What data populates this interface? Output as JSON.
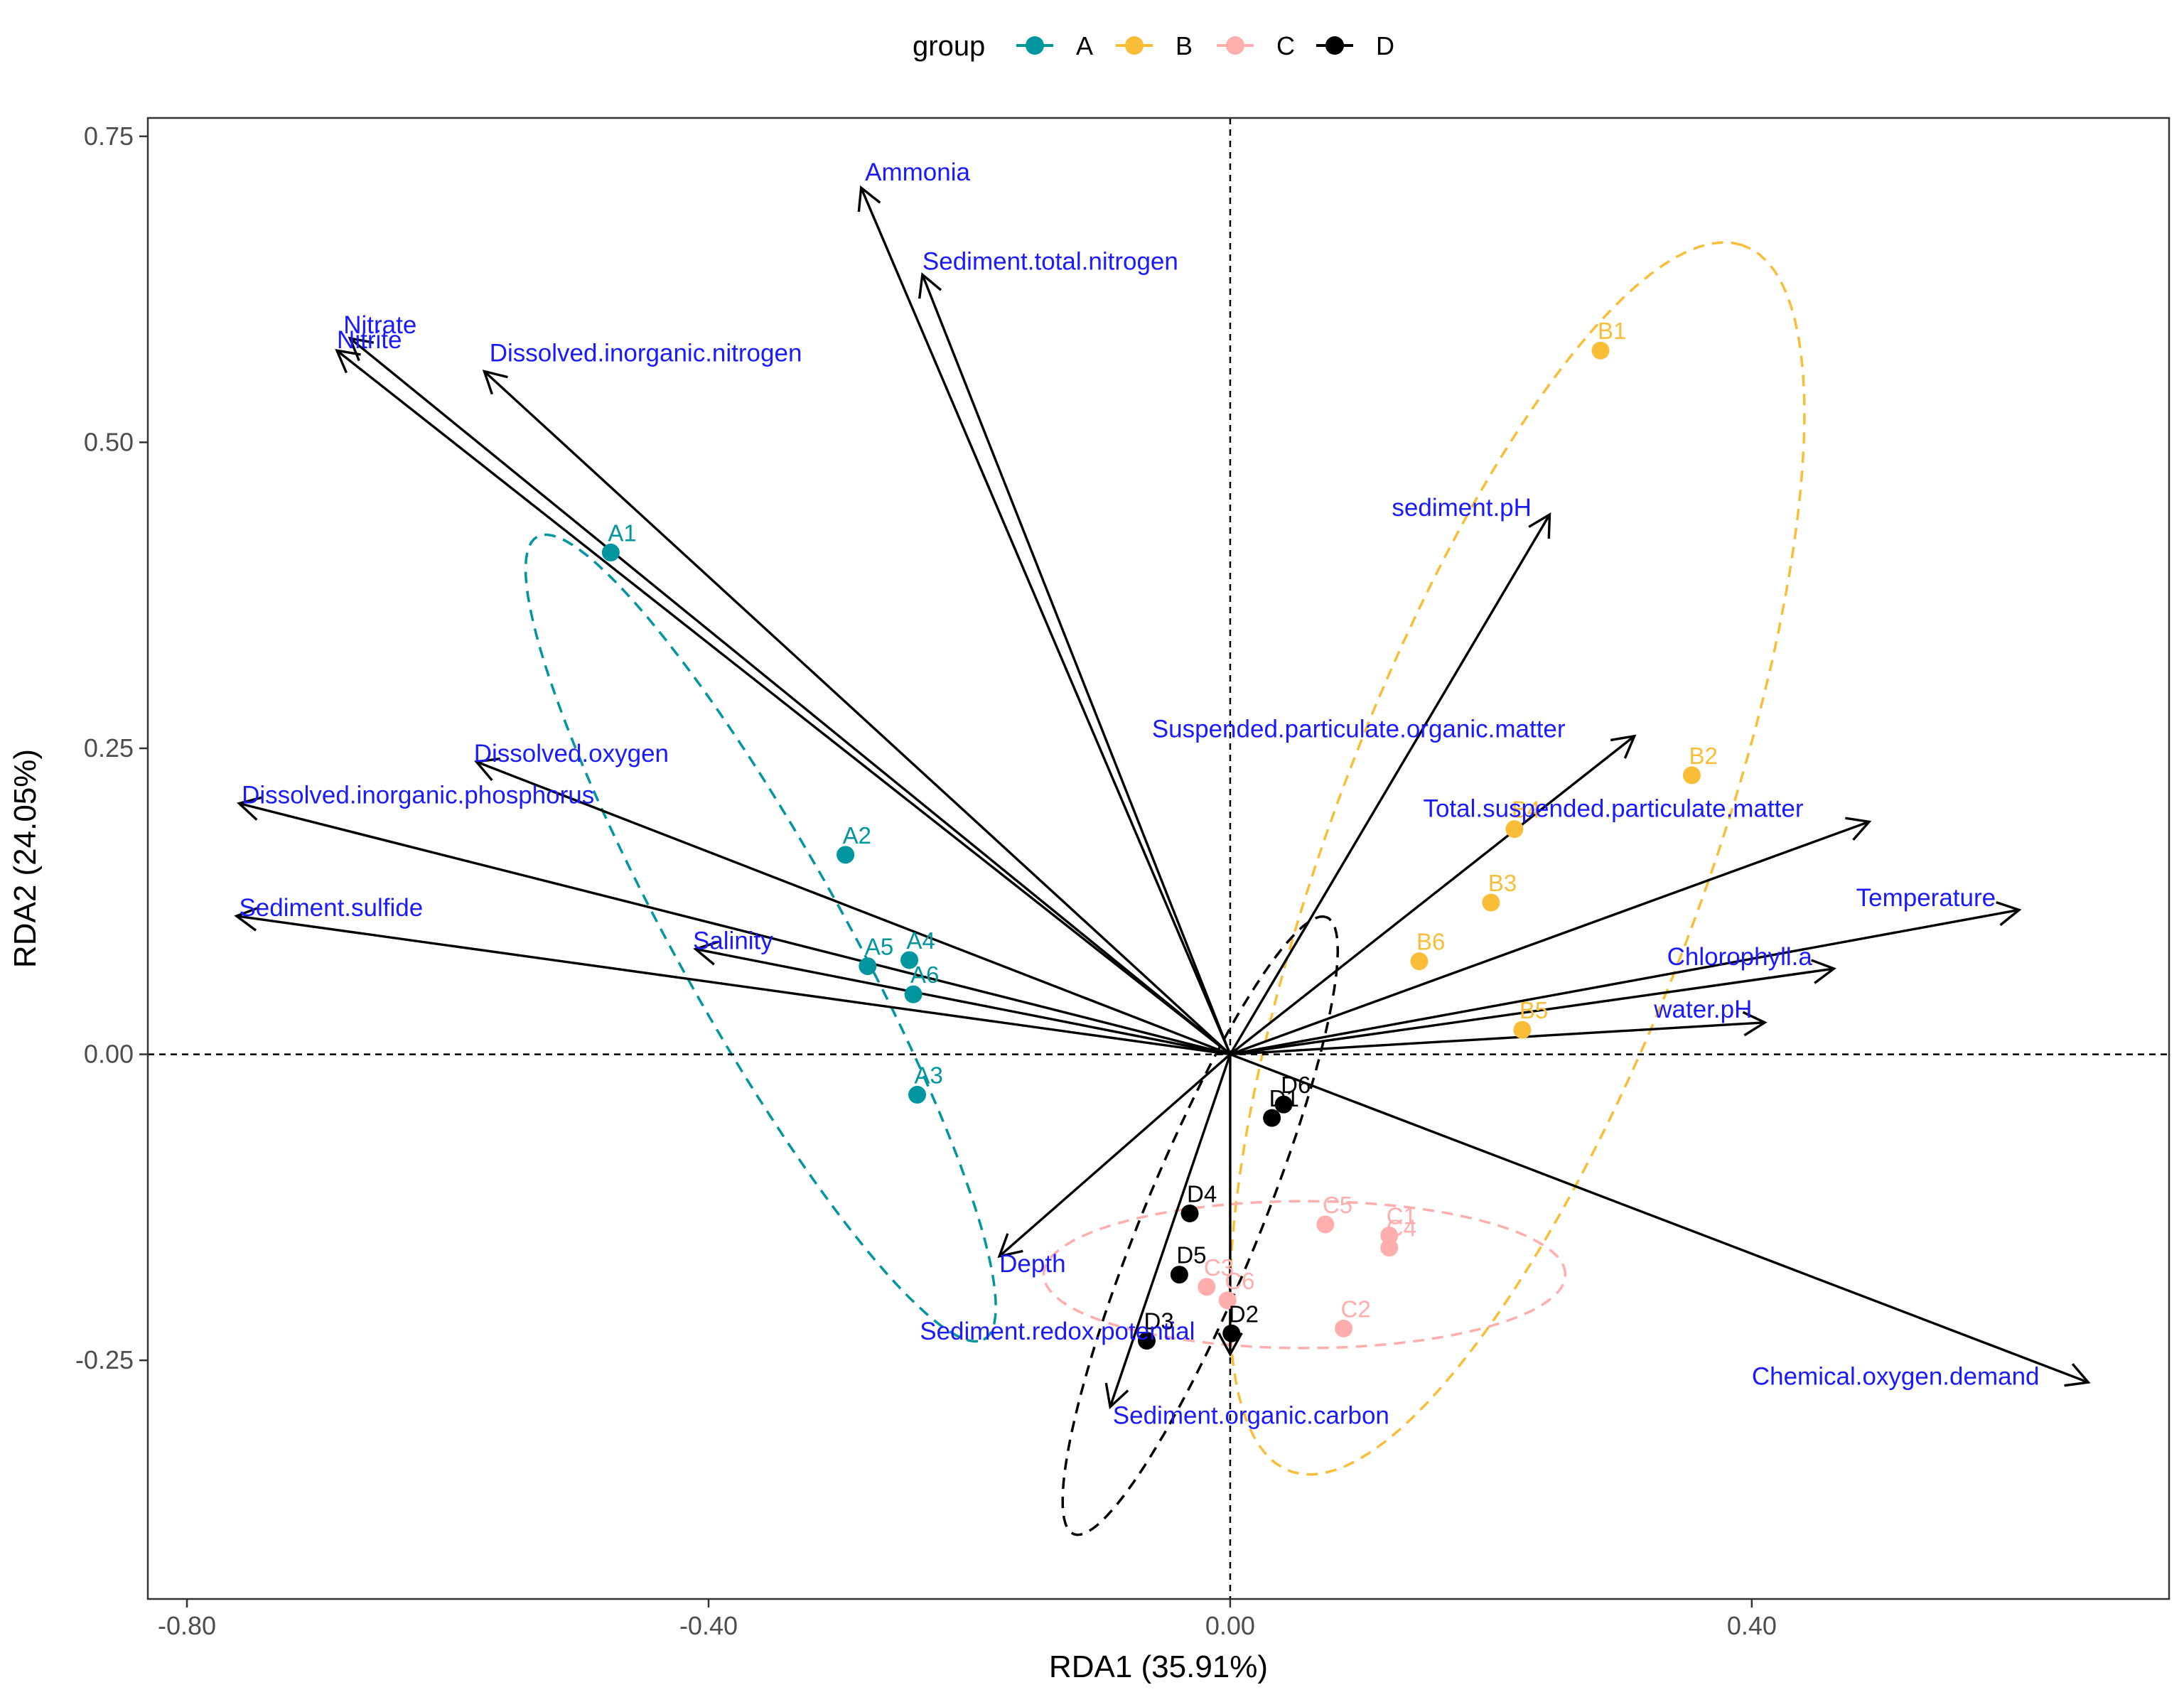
{
  "chart_data": {
    "type": "scatter",
    "subtype": "rda-biplot",
    "xlabel": "RDA1 (35.91%)",
    "ylabel": "RDA2 (24.05%)",
    "xlim": [
      -0.83,
      0.72
    ],
    "ylim": [
      -0.445,
      0.765
    ],
    "x_ticks": [
      -0.8,
      -0.4,
      0.0,
      0.4
    ],
    "x_tick_labels": [
      "-0.80",
      "-0.40",
      "0.00",
      "0.40"
    ],
    "y_ticks": [
      -0.25,
      0.0,
      0.25,
      0.5,
      0.75
    ],
    "y_tick_labels": [
      "-0.25",
      "0.00",
      "0.25",
      "0.50",
      "0.75"
    ],
    "grid": false,
    "reference_lines": {
      "x": 0,
      "y": 0,
      "style": "dashed"
    },
    "legend": {
      "title": "group",
      "position": "top",
      "entries": [
        {
          "name": "A",
          "color": "#00959f"
        },
        {
          "name": "B",
          "color": "#f9bd38"
        },
        {
          "name": "C",
          "color": "#ffadad"
        },
        {
          "name": "D",
          "color": "#000000"
        }
      ]
    },
    "points": [
      {
        "label": "A1",
        "group": "A",
        "x": -0.475,
        "y": 0.41
      },
      {
        "label": "A2",
        "group": "A",
        "x": -0.295,
        "y": 0.163
      },
      {
        "label": "A3",
        "group": "A",
        "x": -0.24,
        "y": -0.033
      },
      {
        "label": "A4",
        "group": "A",
        "x": -0.246,
        "y": 0.077
      },
      {
        "label": "A5",
        "group": "A",
        "x": -0.278,
        "y": 0.072
      },
      {
        "label": "A6",
        "group": "A",
        "x": -0.243,
        "y": 0.049
      },
      {
        "label": "B1",
        "group": "B",
        "x": 0.284,
        "y": 0.575
      },
      {
        "label": "B2",
        "group": "B",
        "x": 0.354,
        "y": 0.228
      },
      {
        "label": "B3",
        "group": "B",
        "x": 0.2,
        "y": 0.124
      },
      {
        "label": "B4",
        "group": "B",
        "x": 0.218,
        "y": 0.184
      },
      {
        "label": "B5",
        "group": "B",
        "x": 0.224,
        "y": 0.02
      },
      {
        "label": "B6",
        "group": "B",
        "x": 0.145,
        "y": 0.076
      },
      {
        "label": "C1",
        "group": "C",
        "x": 0.122,
        "y": -0.148
      },
      {
        "label": "C2",
        "group": "C",
        "x": 0.087,
        "y": -0.224
      },
      {
        "label": "C3",
        "group": "C",
        "x": -0.018,
        "y": -0.19
      },
      {
        "label": "C4",
        "group": "C",
        "x": 0.122,
        "y": -0.158
      },
      {
        "label": "C5",
        "group": "C",
        "x": 0.073,
        "y": -0.139
      },
      {
        "label": "C6",
        "group": "C",
        "x": -0.002,
        "y": -0.201
      },
      {
        "label": "D1",
        "group": "D",
        "x": 0.032,
        "y": -0.052
      },
      {
        "label": "D2",
        "group": "D",
        "x": 0.001,
        "y": -0.228
      },
      {
        "label": "D3",
        "group": "D",
        "x": -0.064,
        "y": -0.234
      },
      {
        "label": "D4",
        "group": "D",
        "x": -0.031,
        "y": -0.13
      },
      {
        "label": "D5",
        "group": "D",
        "x": -0.039,
        "y": -0.18
      },
      {
        "label": "D6",
        "group": "D",
        "x": 0.041,
        "y": -0.041
      }
    ],
    "point_label_text": {
      "A1": "A1",
      "A2": "A2",
      "A3": "A3",
      "A4": "A4",
      "A5": "A5",
      "A6": "A6",
      "B1": "B1",
      "B2": "B2",
      "B3": "B3",
      "B4": "B4",
      "B5": "B5",
      "B6": "B6",
      "C1": "C1",
      "C2": "C2",
      "C3": "C3",
      "C4": "C4",
      "C5": "C5",
      "C6": "C6",
      "D1": "D1",
      "D2": "D2",
      "D3": "D3",
      "D4": "D4",
      "D5": "D5",
      "D6": "D6"
    },
    "ellipses": [
      {
        "group": "A",
        "cx": -0.36,
        "cy": 0.095,
        "rx": 0.37,
        "ry": 0.065,
        "angle_deg": -62.5
      },
      {
        "group": "B",
        "cx": 0.22,
        "cy": 0.16,
        "rx": 0.53,
        "ry": 0.145,
        "angle_deg": 71
      },
      {
        "group": "C",
        "cx": 0.057,
        "cy": -0.18,
        "rx": 0.2,
        "ry": 0.06,
        "angle_deg": 0
      },
      {
        "group": "D",
        "cx": -0.023,
        "cy": -0.14,
        "rx": 0.27,
        "ry": 0.045,
        "angle_deg": 69
      }
    ],
    "vectors": [
      {
        "name": "Ammonia",
        "x": -0.283,
        "y": 0.708
      },
      {
        "name": "Sediment.total.nitrogen",
        "x": -0.236,
        "y": 0.637
      },
      {
        "name": "Nitrate",
        "x": -0.675,
        "y": 0.585
      },
      {
        "name": "Nitrite",
        "x": -0.685,
        "y": 0.575
      },
      {
        "name": "Dissolved.inorganic.nitrogen",
        "x": -0.572,
        "y": 0.558
      },
      {
        "name": "sediment.pH",
        "x": 0.245,
        "y": 0.441
      },
      {
        "name": "Suspended.particulate.organic.matter",
        "x": 0.31,
        "y": 0.26
      },
      {
        "name": "Total.suspended.particulate.matter",
        "x": 0.49,
        "y": 0.19
      },
      {
        "name": "Temperature",
        "x": 0.605,
        "y": 0.118
      },
      {
        "name": "Chlorophyll.a",
        "x": 0.463,
        "y": 0.07
      },
      {
        "name": "water.pH",
        "x": 0.41,
        "y": 0.026
      },
      {
        "name": "Chemical.oxygen.demand",
        "x": 0.658,
        "y": -0.268
      },
      {
        "name": "Dissolved.oxygen",
        "x": -0.578,
        "y": 0.239
      },
      {
        "name": "Dissolved.inorganic.phosphorus",
        "x": -0.76,
        "y": 0.205
      },
      {
        "name": "Sediment.sulfide",
        "x": -0.762,
        "y": 0.113
      },
      {
        "name": "Salinity",
        "x": -0.41,
        "y": 0.086
      },
      {
        "name": "Depth",
        "x": -0.177,
        "y": -0.165
      },
      {
        "name": "Sediment.redox.potential",
        "x": 0.0,
        "y": -0.245
      },
      {
        "name": "Sediment.organic.carbon",
        "x": -0.092,
        "y": -0.288
      }
    ],
    "vector_labels": [
      {
        "name": "Ammonia",
        "x": -0.28,
        "y": 0.714,
        "anchor": "start"
      },
      {
        "name": "Sediment.total.nitrogen",
        "x": -0.236,
        "y": 0.641,
        "anchor": "start"
      },
      {
        "name": "Nitrate",
        "x": -0.68,
        "y": 0.589,
        "anchor": "start"
      },
      {
        "name": "Nitrite",
        "x": -0.685,
        "y": 0.577,
        "anchor": "start"
      },
      {
        "name": "Dissolved.inorganic.nitrogen",
        "x": -0.568,
        "y": 0.566,
        "anchor": "start"
      },
      {
        "name": "sediment.pH",
        "x": 0.124,
        "y": 0.44,
        "anchor": "start"
      },
      {
        "name": "Suspended.particulate.organic.matter",
        "x": -0.06,
        "y": 0.259,
        "anchor": "start"
      },
      {
        "name": "Total.suspended.particulate.matter",
        "x": 0.148,
        "y": 0.194,
        "anchor": "start"
      },
      {
        "name": "Temperature",
        "x": 0.48,
        "y": 0.121,
        "anchor": "start"
      },
      {
        "name": "Chlorophyll.a",
        "x": 0.335,
        "y": 0.073,
        "anchor": "start"
      },
      {
        "name": "water.pH",
        "x": 0.325,
        "y": 0.03,
        "anchor": "start"
      },
      {
        "name": "Chemical.oxygen.demand",
        "x": 0.4,
        "y": -0.27,
        "anchor": "start"
      },
      {
        "name": "Dissolved.oxygen",
        "x": -0.58,
        "y": 0.239,
        "anchor": "start"
      },
      {
        "name": "Dissolved.inorganic.phosphorus",
        "x": -0.758,
        "y": 0.205,
        "anchor": "start"
      },
      {
        "name": "Sediment.sulfide",
        "x": -0.76,
        "y": 0.113,
        "anchor": "start"
      },
      {
        "name": "Salinity",
        "x": -0.412,
        "y": 0.086,
        "anchor": "start"
      },
      {
        "name": "Depth",
        "x": -0.177,
        "y": -0.178,
        "anchor": "start"
      },
      {
        "name": "Sediment.redox.potential",
        "x": -0.238,
        "y": -0.233,
        "anchor": "start"
      },
      {
        "name": "Sediment.organic.carbon",
        "x": -0.09,
        "y": -0.302,
        "anchor": "start"
      }
    ]
  }
}
